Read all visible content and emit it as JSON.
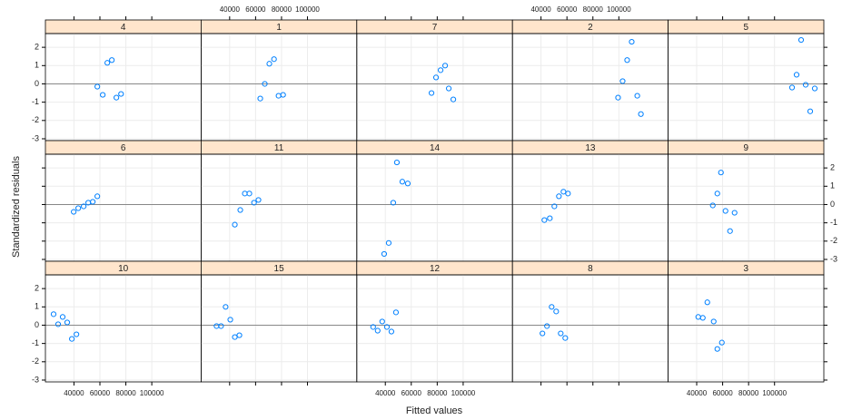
{
  "chart_data": {
    "type": "scatter",
    "xlabel": "Fitted values",
    "ylabel": "Standardized residuals",
    "xlim": [
      18000,
      138000
    ],
    "ylim": [
      -3.1,
      2.75
    ],
    "xticks": [
      40000,
      60000,
      80000,
      100000
    ],
    "yticks": [
      -3,
      -2,
      -1,
      0,
      1,
      2
    ],
    "grid": true,
    "hline": 0,
    "color": "#0080ff",
    "strip_color": "#ffe5cc",
    "columns": 5,
    "panels": [
      {
        "label": "4",
        "x": [
          58000,
          62200,
          65700,
          69200,
          72700,
          76300
        ],
        "y": [
          -0.15,
          -0.6,
          1.15,
          1.3,
          -0.75,
          -0.55
        ]
      },
      {
        "label": "1",
        "x": [
          63600,
          67100,
          70600,
          74200,
          77700,
          81200
        ],
        "y": [
          -0.8,
          0,
          1.1,
          1.35,
          -0.65,
          -0.6
        ]
      },
      {
        "label": "7",
        "x": [
          75600,
          79100,
          82600,
          86100,
          88900,
          92400
        ],
        "y": [
          -0.5,
          0.35,
          0.75,
          1.0,
          -0.25,
          -0.85
        ]
      },
      {
        "label": "2",
        "x": [
          99400,
          102900,
          106400,
          109900,
          114200,
          117000
        ],
        "y": [
          -0.75,
          0.15,
          1.3,
          2.3,
          -0.65,
          -1.65
        ]
      },
      {
        "label": "5",
        "x": [
          113500,
          117000,
          120500,
          124000,
          127500,
          131000
        ],
        "y": [
          -0.2,
          0.5,
          2.4,
          -0.05,
          -1.5,
          -0.25
        ]
      },
      {
        "label": "6",
        "x": [
          39800,
          43300,
          47500,
          51000,
          54500,
          58000
        ],
        "y": [
          -0.4,
          -0.2,
          -0.1,
          0.1,
          0.15,
          0.45
        ]
      },
      {
        "label": "11",
        "x": [
          44000,
          48200,
          51700,
          55200,
          58800,
          62200
        ],
        "y": [
          -1.1,
          -0.3,
          0.6,
          0.6,
          0.1,
          0.25
        ]
      },
      {
        "label": "14",
        "x": [
          39100,
          42600,
          46100,
          48900,
          53100,
          57300
        ],
        "y": [
          -2.7,
          -2.1,
          0.1,
          2.3,
          1.25,
          1.15
        ]
      },
      {
        "label": "13",
        "x": [
          42600,
          46800,
          50300,
          53800,
          57300,
          60800
        ],
        "y": [
          -0.85,
          -0.75,
          -0.1,
          0.45,
          0.7,
          0.6
        ]
      },
      {
        "label": "9",
        "x": [
          52400,
          55900,
          58700,
          62200,
          65700,
          69200
        ],
        "y": [
          -0.05,
          0.6,
          1.75,
          -0.35,
          -1.45,
          -0.45
        ]
      },
      {
        "label": "10",
        "x": [
          24300,
          27800,
          31300,
          34800,
          38400,
          41900
        ],
        "y": [
          0.6,
          0.05,
          0.45,
          0.15,
          -0.75,
          -0.5
        ]
      },
      {
        "label": "15",
        "x": [
          29900,
          33400,
          36900,
          40500,
          44000,
          47500
        ],
        "y": [
          -0.05,
          -0.05,
          1.0,
          0.3,
          -0.65,
          -0.55
        ]
      },
      {
        "label": "12",
        "x": [
          30600,
          34100,
          37600,
          41200,
          44700,
          48200
        ],
        "y": [
          -0.1,
          -0.3,
          0.2,
          -0.1,
          -0.35,
          0.7
        ]
      },
      {
        "label": "8",
        "x": [
          41100,
          44600,
          48200,
          51700,
          55200,
          58700
        ],
        "y": [
          -0.45,
          -0.05,
          1.0,
          0.75,
          -0.45,
          -0.7
        ]
      },
      {
        "label": "3",
        "x": [
          41200,
          44700,
          48200,
          53100,
          55900,
          59400
        ],
        "y": [
          0.45,
          0.4,
          1.25,
          0.2,
          -1.3,
          -0.95
        ]
      }
    ]
  }
}
